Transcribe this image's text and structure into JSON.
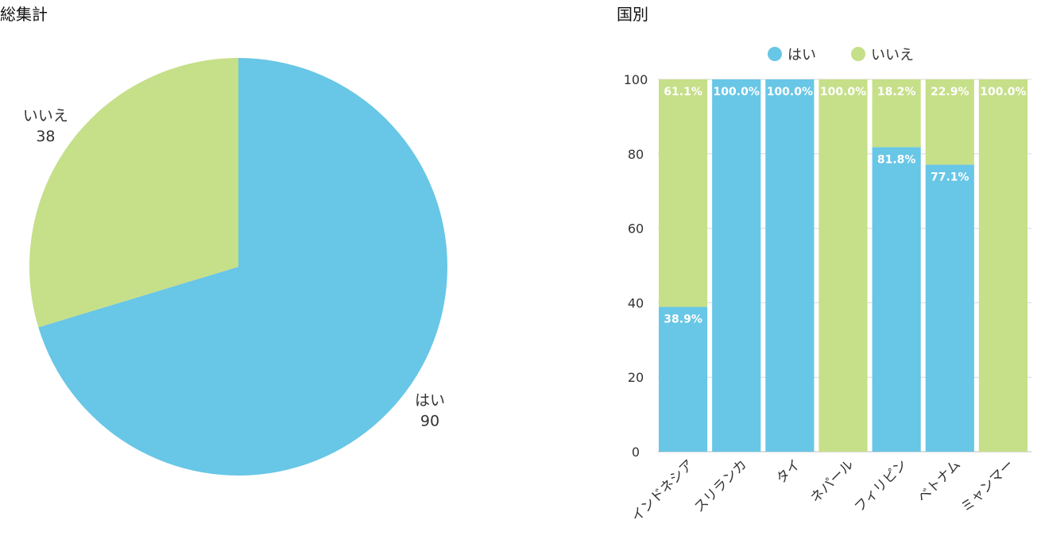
{
  "colors": {
    "yes": "#68c6e6",
    "no": "#c6df89",
    "grid": "#d9d9d9",
    "axis": "#bbbbbb"
  },
  "chart_data": [
    {
      "type": "pie",
      "title": "総集計",
      "slices": [
        {
          "label": "はい",
          "value": 90
        },
        {
          "label": "いいえ",
          "value": 38
        }
      ]
    },
    {
      "type": "bar",
      "stacked": true,
      "percent": true,
      "title": "国別",
      "legend": [
        "はい",
        "いいえ"
      ],
      "legend_position": "top",
      "categories": [
        "インドネシア",
        "スリランカ",
        "タイ",
        "ネパール",
        "フィリピン",
        "ベトナム",
        "ミャンマー"
      ],
      "series": [
        {
          "name": "はい",
          "values": [
            38.9,
            100.0,
            100.0,
            0.0,
            81.8,
            77.1,
            0.0
          ],
          "labels": [
            "38.9%",
            "100.0%",
            "100.0%",
            "",
            "81.8%",
            "77.1%",
            ""
          ]
        },
        {
          "name": "いいえ",
          "values": [
            61.1,
            0.0,
            0.0,
            100.0,
            18.2,
            22.9,
            100.0
          ],
          "labels": [
            "61.1%",
            "",
            "",
            "100.0%",
            "18.2%",
            "22.9%",
            "100.0%"
          ]
        }
      ],
      "yticks": [
        "0",
        "20",
        "40",
        "60",
        "80",
        "100"
      ],
      "ylim": [
        0,
        100
      ],
      "grid": true
    }
  ]
}
